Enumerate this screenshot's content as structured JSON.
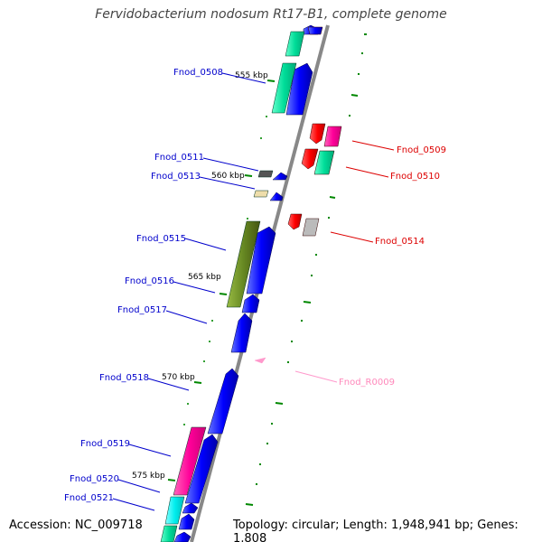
{
  "title": "Fervidobacterium nodosum Rt17-B1, complete genome",
  "footer": {
    "accession": "Accession: NC_009718",
    "stats": "Topology: circular; Length: 1,948,941 bp; Genes: 1,808"
  },
  "ruler": [
    "555 kbp",
    "560 kbp",
    "565 kbp",
    "570 kbp",
    "575 kbp"
  ],
  "left_labels": [
    "Fnod_0508",
    "Fnod_0511",
    "Fnod_0513",
    "Fnod_0515",
    "Fnod_0516",
    "Fnod_0517",
    "Fnod_0518",
    "Fnod_0519",
    "Fnod_0520",
    "Fnod_0521"
  ],
  "right_labels": [
    "Fnod_0509",
    "Fnod_0510",
    "Fnod_0514",
    "Fnod_R0009"
  ],
  "colors": {
    "forward": "#0000ff",
    "reverse": "#ff0000",
    "rna": "#ff99cc",
    "axis": "#888888",
    "tick": "#008800",
    "teal": "#00dd99",
    "magenta": "#ff0099",
    "olive": "#668822",
    "cyan": "#00eeee",
    "gray": "#555555",
    "lightgray": "#bbbbbb",
    "khaki": "#eeddaa"
  }
}
